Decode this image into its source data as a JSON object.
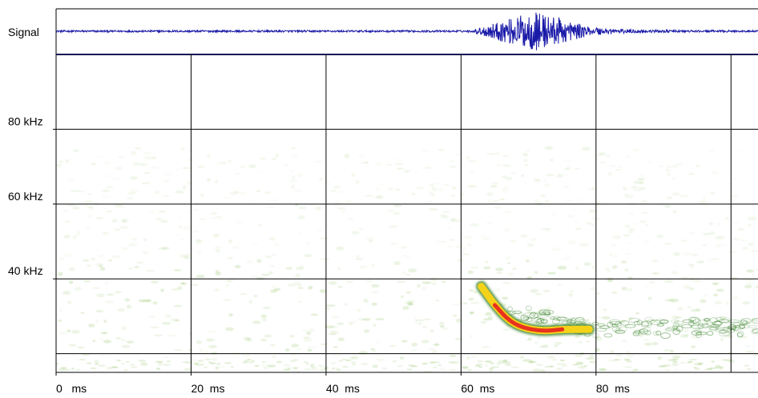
{
  "chart_data": {
    "type": "spectrogram",
    "signal_panel": {
      "label": "Signal",
      "trace_color": "#1a1aa8",
      "burst": {
        "start_ms": 62,
        "peak_ms": 71,
        "end_ms": 80,
        "peak_amplitude": 1.0,
        "baseline_amplitude": 0.05
      }
    },
    "x_axis": {
      "unit": "ms",
      "range": [
        0,
        104
      ],
      "ticks": [
        {
          "value": 0,
          "label": "0   ms"
        },
        {
          "value": 20,
          "label": "20  ms"
        },
        {
          "value": 40,
          "label": "40  ms"
        },
        {
          "value": 60,
          "label": "60  ms"
        },
        {
          "value": 80,
          "label": "80  ms"
        }
      ],
      "gridlines": [
        0,
        20,
        40,
        60,
        80,
        100
      ]
    },
    "y_axis": {
      "unit": "kHz",
      "range": [
        15,
        100
      ],
      "ticks": [
        {
          "value": 80,
          "label": "80 kHz"
        },
        {
          "value": 60,
          "label": "60 kHz"
        },
        {
          "value": 40,
          "label": "40 kHz"
        }
      ],
      "gridlines": [
        100,
        80,
        60,
        40,
        20
      ]
    },
    "grid": true,
    "call": {
      "description_points": [
        {
          "t_ms": 63,
          "f_khz": 38
        },
        {
          "t_ms": 65,
          "f_khz": 33
        },
        {
          "t_ms": 67,
          "f_khz": 29
        },
        {
          "t_ms": 69,
          "f_khz": 27
        },
        {
          "t_ms": 72,
          "f_khz": 26
        },
        {
          "t_ms": 75,
          "f_khz": 26.5
        },
        {
          "t_ms": 79,
          "f_khz": 26.5
        }
      ],
      "tail": {
        "start_ms": 79,
        "end_ms": 104,
        "f_khz": 27
      },
      "colors": {
        "core": "#e8321e",
        "mid": "#f5d21a",
        "edge": "#2e7d1e",
        "noise": "#b8d89a"
      }
    }
  }
}
